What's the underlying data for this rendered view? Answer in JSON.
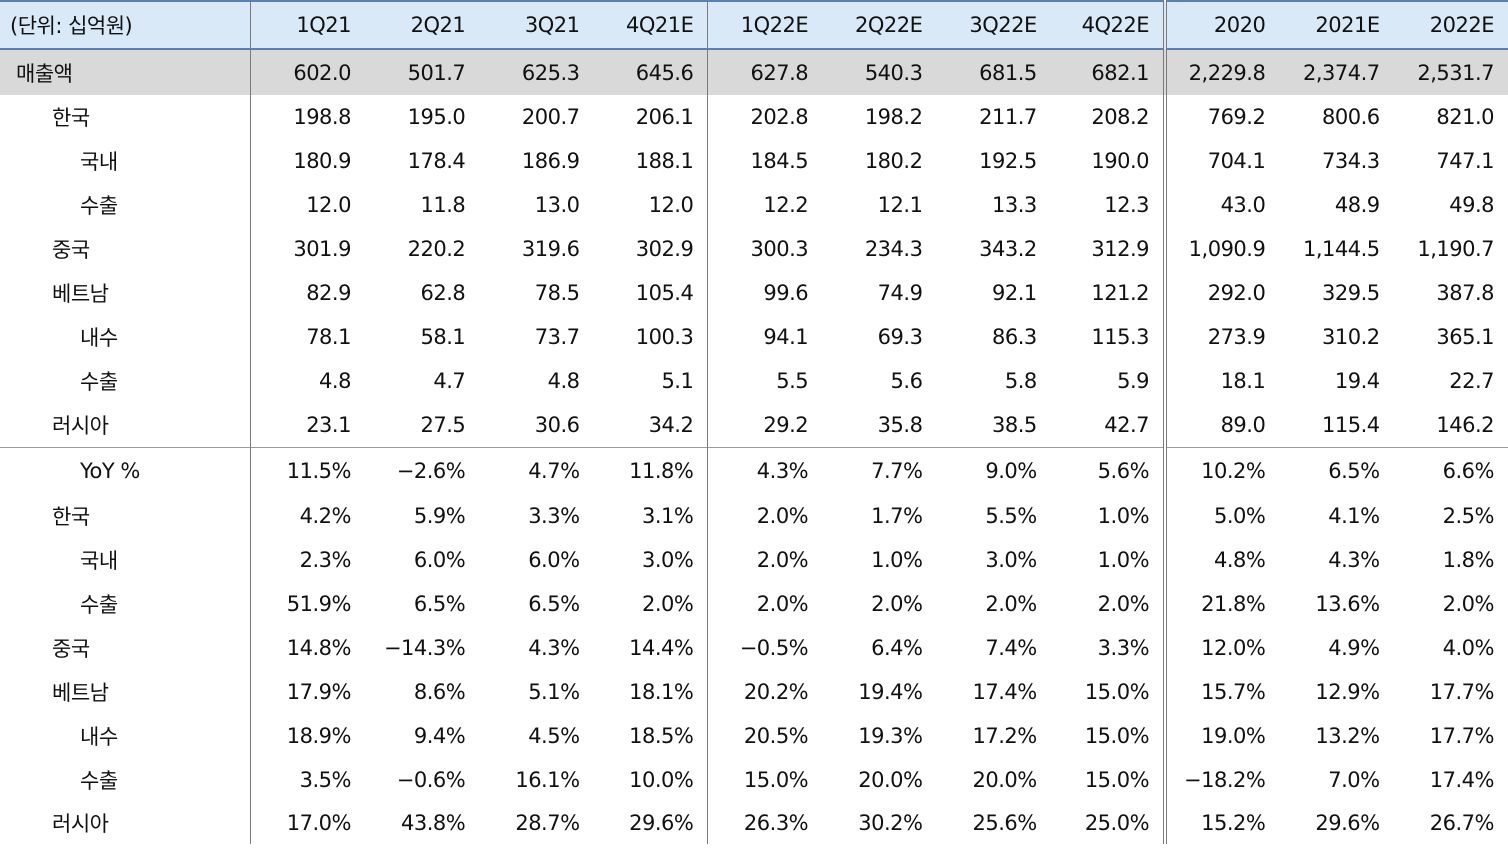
{
  "header": {
    "unit_label": "(단위: 십억원)",
    "columns": [
      "1Q21",
      "2Q21",
      "3Q21",
      "4Q21E",
      "1Q22E",
      "2Q22E",
      "3Q22E",
      "4Q22E",
      "2020",
      "2021E",
      "2022E"
    ]
  },
  "rows": [
    {
      "label": "매출액",
      "values": [
        "602.0",
        "501.7",
        "625.3",
        "645.6",
        "627.8",
        "540.3",
        "681.5",
        "682.1",
        "2,229.8",
        "2,374.7",
        "2,531.7"
      ]
    },
    {
      "label": "한국",
      "values": [
        "198.8",
        "195.0",
        "200.7",
        "206.1",
        "202.8",
        "198.2",
        "211.7",
        "208.2",
        "769.2",
        "800.6",
        "821.0"
      ]
    },
    {
      "label": "국내",
      "values": [
        "180.9",
        "178.4",
        "186.9",
        "188.1",
        "184.5",
        "180.2",
        "192.5",
        "190.0",
        "704.1",
        "734.3",
        "747.1"
      ]
    },
    {
      "label": "수출",
      "values": [
        "12.0",
        "11.8",
        "13.0",
        "12.0",
        "12.2",
        "12.1",
        "13.3",
        "12.3",
        "43.0",
        "48.9",
        "49.8"
      ]
    },
    {
      "label": "중국",
      "values": [
        "301.9",
        "220.2",
        "319.6",
        "302.9",
        "300.3",
        "234.3",
        "343.2",
        "312.9",
        "1,090.9",
        "1,144.5",
        "1,190.7"
      ]
    },
    {
      "label": "베트남",
      "values": [
        "82.9",
        "62.8",
        "78.5",
        "105.4",
        "99.6",
        "74.9",
        "92.1",
        "121.2",
        "292.0",
        "329.5",
        "387.8"
      ]
    },
    {
      "label": "내수",
      "values": [
        "78.1",
        "58.1",
        "73.7",
        "100.3",
        "94.1",
        "69.3",
        "86.3",
        "115.3",
        "273.9",
        "310.2",
        "365.1"
      ]
    },
    {
      "label": "수출",
      "values": [
        "4.8",
        "4.7",
        "4.8",
        "5.1",
        "5.5",
        "5.6",
        "5.8",
        "5.9",
        "18.1",
        "19.4",
        "22.7"
      ]
    },
    {
      "label": "러시아",
      "values": [
        "23.1",
        "27.5",
        "30.6",
        "34.2",
        "29.2",
        "35.8",
        "38.5",
        "42.7",
        "89.0",
        "115.4",
        "146.2"
      ]
    },
    {
      "label": "YoY %",
      "values": [
        "11.5%",
        "−2.6%",
        "4.7%",
        "11.8%",
        "4.3%",
        "7.7%",
        "9.0%",
        "5.6%",
        "10.2%",
        "6.5%",
        "6.6%"
      ]
    },
    {
      "label": "한국",
      "values": [
        "4.2%",
        "5.9%",
        "3.3%",
        "3.1%",
        "2.0%",
        "1.7%",
        "5.5%",
        "1.0%",
        "5.0%",
        "4.1%",
        "2.5%"
      ]
    },
    {
      "label": "국내",
      "values": [
        "2.3%",
        "6.0%",
        "6.0%",
        "3.0%",
        "2.0%",
        "1.0%",
        "3.0%",
        "1.0%",
        "4.8%",
        "4.3%",
        "1.8%"
      ]
    },
    {
      "label": "수출",
      "values": [
        "51.9%",
        "6.5%",
        "6.5%",
        "2.0%",
        "2.0%",
        "2.0%",
        "2.0%",
        "2.0%",
        "21.8%",
        "13.6%",
        "2.0%"
      ]
    },
    {
      "label": "중국",
      "values": [
        "14.8%",
        "−14.3%",
        "4.3%",
        "14.4%",
        "−0.5%",
        "6.4%",
        "7.4%",
        "3.3%",
        "12.0%",
        "4.9%",
        "4.0%"
      ]
    },
    {
      "label": "베트남",
      "values": [
        "17.9%",
        "8.6%",
        "5.1%",
        "18.1%",
        "20.2%",
        "19.4%",
        "17.4%",
        "15.0%",
        "15.7%",
        "12.9%",
        "17.7%"
      ]
    },
    {
      "label": "내수",
      "values": [
        "18.9%",
        "9.4%",
        "4.5%",
        "18.5%",
        "20.5%",
        "19.3%",
        "17.2%",
        "15.0%",
        "19.0%",
        "13.2%",
        "17.7%"
      ]
    },
    {
      "label": "수출",
      "values": [
        "3.5%",
        "−0.6%",
        "16.1%",
        "10.0%",
        "15.0%",
        "20.0%",
        "20.0%",
        "15.0%",
        "−18.2%",
        "7.0%",
        "17.4%"
      ]
    },
    {
      "label": "러시아",
      "values": [
        "17.0%",
        "43.8%",
        "28.7%",
        "29.6%",
        "26.3%",
        "30.2%",
        "25.6%",
        "25.0%",
        "15.2%",
        "29.6%",
        "26.7%"
      ]
    }
  ]
}
